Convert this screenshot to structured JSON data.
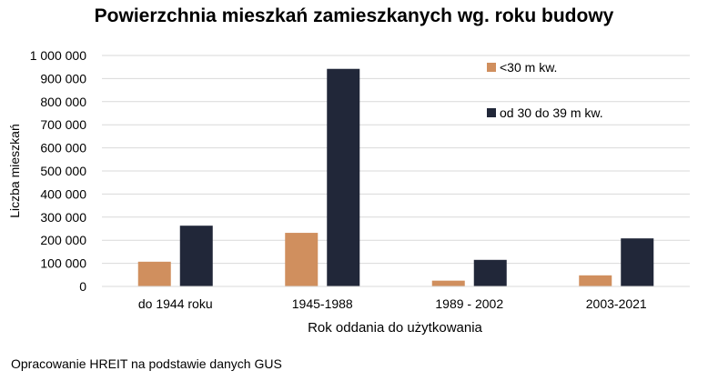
{
  "chart_data": {
    "type": "bar",
    "title": "Powierzchnia mieszkań zamieszkanych wg. roku budowy",
    "xlabel": "Rok oddania do użytkowania",
    "ylabel": "Liczba mieszkań",
    "categories": [
      "do 1944 roku",
      "1945-1988",
      "1989 - 2002",
      "2003-2021"
    ],
    "series": [
      {
        "name": "<30 m kw.",
        "values": [
          107000,
          232000,
          25000,
          48000
        ],
        "color": "#D08F5E"
      },
      {
        "name": "od 30 do 39 m kw.",
        "values": [
          263000,
          942000,
          115000,
          208000
        ],
        "color": "#212739"
      }
    ],
    "ylim": [
      0,
      1000000
    ],
    "yticks": [
      0,
      100000,
      200000,
      300000,
      400000,
      500000,
      600000,
      700000,
      800000,
      900000,
      1000000
    ],
    "ytick_labels": [
      "0",
      "100 000",
      "200 000",
      "300 000",
      "400 000",
      "500 000",
      "600 000",
      "700 000",
      "800 000",
      "900 000",
      "1 000 000"
    ],
    "grid": true,
    "legend_position": "top-right"
  },
  "footer": {
    "source": "Opracowanie HREIT na podstawie danych GUS"
  }
}
